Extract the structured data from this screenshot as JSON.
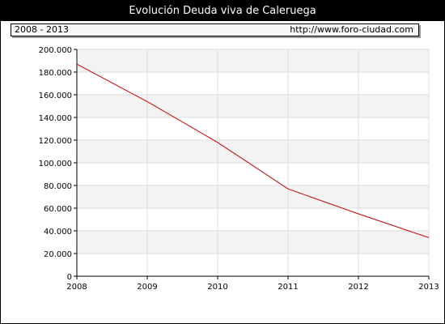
{
  "header": {
    "title": "Evolución Deuda viva de Caleruega",
    "range_label": "2008 - 2013",
    "url": "http://www.foro-ciudad.com"
  },
  "colors": {
    "title_bg": "#000000",
    "line": "#cc0000",
    "band": "#f3f3f3",
    "grid": "#dddddd"
  },
  "chart_data": {
    "type": "line",
    "title": "Evolución Deuda viva de Caleruega",
    "x": [
      2008,
      2009,
      2010,
      2011,
      2012,
      2013
    ],
    "x_tick_labels": [
      "2008",
      "2009",
      "2010",
      "2011",
      "2012",
      "2013"
    ],
    "series": [
      {
        "values": [
          187000,
          154000,
          118000,
          77000,
          55000,
          34000
        ]
      }
    ],
    "ylim": [
      0,
      200000
    ],
    "y_ticks": [
      0,
      20000,
      40000,
      60000,
      80000,
      100000,
      120000,
      140000,
      160000,
      180000,
      200000
    ],
    "y_tick_labels": [
      "0",
      "20.000",
      "40.000",
      "60.000",
      "80.000",
      "100.000",
      "120.000",
      "140.000",
      "160.000",
      "180.000",
      "200.000"
    ],
    "grid": true,
    "legend": "none"
  }
}
